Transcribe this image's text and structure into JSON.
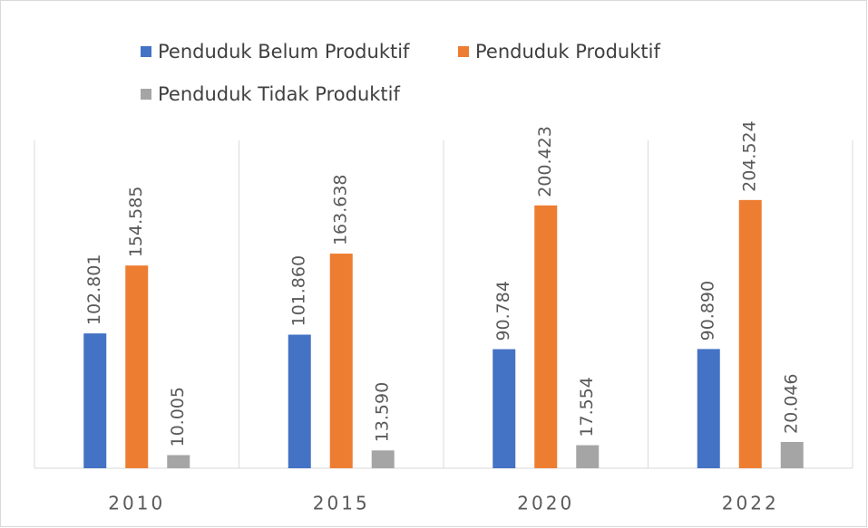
{
  "chart_data": {
    "type": "bar",
    "categories": [
      "2010",
      "2015",
      "2020",
      "2022"
    ],
    "series": [
      {
        "name": "Penduduk Belum Produktif",
        "color": "#4472c4",
        "values": [
          102801,
          101860,
          90784,
          90890
        ],
        "value_labels": [
          "102.801",
          "101.860",
          "90.784",
          "90.890"
        ]
      },
      {
        "name": "Penduduk Produktif",
        "color": "#ed7d31",
        "values": [
          154585,
          163638,
          200423,
          204524
        ],
        "value_labels": [
          "154.585",
          "163.638",
          "200.423",
          "204.524"
        ]
      },
      {
        "name": "Penduduk Tidak Produktif",
        "color": "#a5a5a5",
        "values": [
          10005,
          13590,
          17554,
          20046
        ],
        "value_labels": [
          "10.005",
          "13.590",
          "17.554",
          "20.046"
        ]
      }
    ],
    "ylim": [
      0,
      250000
    ],
    "legend": "top"
  }
}
